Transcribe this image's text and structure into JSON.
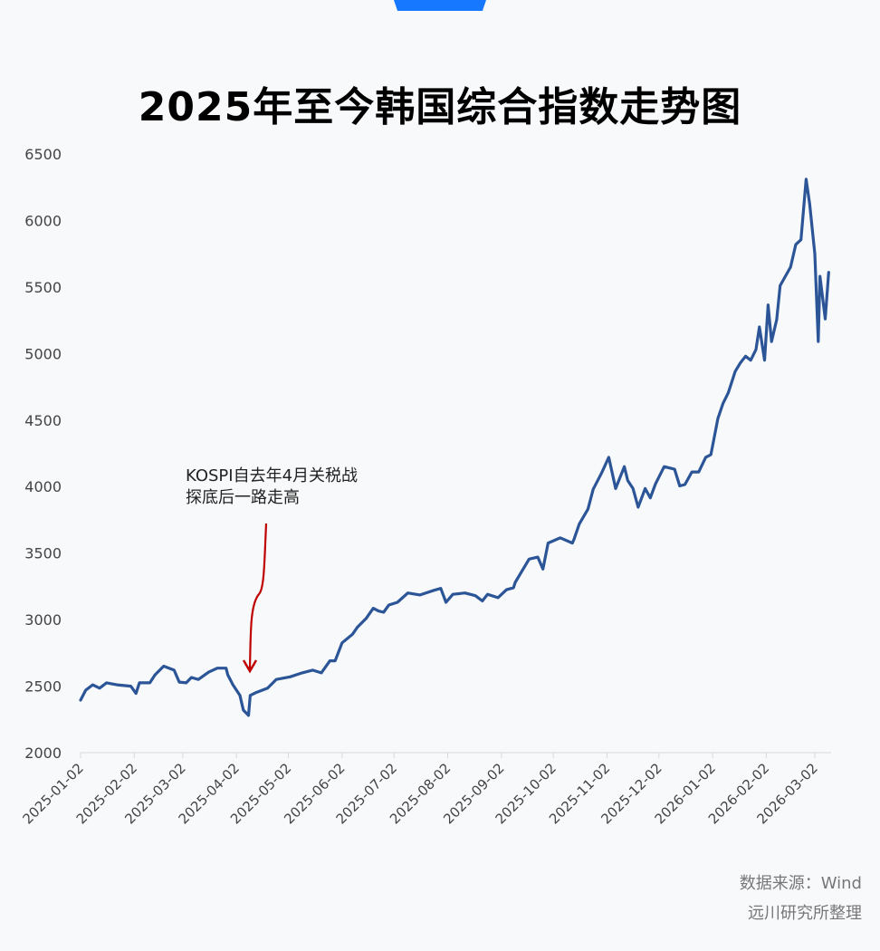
{
  "accent_color": "#1677ff",
  "chart_data": {
    "type": "line",
    "title": "2025年至今韩国综合指数走势图",
    "xlabel": "",
    "ylabel": "",
    "ylim": [
      2000,
      6500
    ],
    "yticks": [
      2000,
      2500,
      3000,
      3500,
      4000,
      4500,
      5000,
      5500,
      6000,
      6500
    ],
    "xticks": [
      "2025-01-02",
      "2025-02-02",
      "2025-03-02",
      "2025-04-02",
      "2025-05-02",
      "2025-06-02",
      "2025-07-02",
      "2025-08-02",
      "2025-09-02",
      "2025-10-02",
      "2025-11-02",
      "2025-12-02",
      "2026-01-02",
      "2026-02-02",
      "2026-03-02"
    ],
    "grid": false,
    "line_color": "#2b5597",
    "annotation": {
      "lines": [
        "KOSPI自去年4月关税战",
        "探底后一路走高"
      ],
      "arrow_color": "#c00000"
    },
    "series": [
      {
        "points": [
          [
            "2025-01-02",
            2395
          ],
          [
            "2025-01-05",
            2470
          ],
          [
            "2025-01-09",
            2510
          ],
          [
            "2025-01-13",
            2485
          ],
          [
            "2025-01-17",
            2525
          ],
          [
            "2025-01-23",
            2510
          ],
          [
            "2025-01-31",
            2500
          ],
          [
            "2025-02-03",
            2445
          ],
          [
            "2025-02-05",
            2525
          ],
          [
            "2025-02-11",
            2525
          ],
          [
            "2025-02-14",
            2585
          ],
          [
            "2025-02-19",
            2650
          ],
          [
            "2025-02-25",
            2620
          ],
          [
            "2025-02-28",
            2530
          ],
          [
            "2025-03-04",
            2525
          ],
          [
            "2025-03-07",
            2565
          ],
          [
            "2025-03-11",
            2550
          ],
          [
            "2025-03-17",
            2605
          ],
          [
            "2025-03-22",
            2635
          ],
          [
            "2025-03-27",
            2635
          ],
          [
            "2025-03-28",
            2585
          ],
          [
            "2025-03-31",
            2510
          ],
          [
            "2025-04-04",
            2430
          ],
          [
            "2025-04-06",
            2320
          ],
          [
            "2025-04-09",
            2280
          ],
          [
            "2025-04-10",
            2430
          ],
          [
            "2025-04-13",
            2450
          ],
          [
            "2025-04-20",
            2485
          ],
          [
            "2025-04-25",
            2550
          ],
          [
            "2025-05-03",
            2570
          ],
          [
            "2025-05-10",
            2600
          ],
          [
            "2025-05-16",
            2620
          ],
          [
            "2025-05-21",
            2600
          ],
          [
            "2025-05-26",
            2690
          ],
          [
            "2025-05-29",
            2690
          ],
          [
            "2025-06-02",
            2825
          ],
          [
            "2025-06-08",
            2890
          ],
          [
            "2025-06-11",
            2945
          ],
          [
            "2025-06-16",
            3010
          ],
          [
            "2025-06-20",
            3085
          ],
          [
            "2025-06-23",
            3065
          ],
          [
            "2025-06-26",
            3055
          ],
          [
            "2025-06-29",
            3110
          ],
          [
            "2025-07-04",
            3130
          ],
          [
            "2025-07-10",
            3200
          ],
          [
            "2025-07-17",
            3185
          ],
          [
            "2025-07-25",
            3220
          ],
          [
            "2025-07-29",
            3235
          ],
          [
            "2025-08-01",
            3130
          ],
          [
            "2025-08-05",
            3190
          ],
          [
            "2025-08-12",
            3200
          ],
          [
            "2025-08-18",
            3180
          ],
          [
            "2025-08-22",
            3140
          ],
          [
            "2025-08-25",
            3190
          ],
          [
            "2025-08-31",
            3165
          ],
          [
            "2025-09-05",
            3225
          ],
          [
            "2025-09-09",
            3240
          ],
          [
            "2025-09-10",
            3280
          ],
          [
            "2025-09-18",
            3455
          ],
          [
            "2025-09-23",
            3470
          ],
          [
            "2025-09-26",
            3380
          ],
          [
            "2025-09-29",
            3575
          ],
          [
            "2025-10-06",
            3615
          ],
          [
            "2025-10-13",
            3575
          ],
          [
            "2025-10-14",
            3605
          ],
          [
            "2025-10-17",
            3720
          ],
          [
            "2025-10-22",
            3830
          ],
          [
            "2025-10-25",
            3980
          ],
          [
            "2025-10-30",
            4105
          ],
          [
            "2025-11-03",
            4220
          ],
          [
            "2025-11-07",
            3985
          ],
          [
            "2025-11-12",
            4150
          ],
          [
            "2025-11-14",
            4045
          ],
          [
            "2025-11-17",
            3985
          ],
          [
            "2025-11-20",
            3845
          ],
          [
            "2025-11-24",
            3985
          ],
          [
            "2025-11-27",
            3915
          ],
          [
            "2025-11-30",
            4020
          ],
          [
            "2025-12-05",
            4150
          ],
          [
            "2025-12-11",
            4130
          ],
          [
            "2025-12-14",
            4005
          ],
          [
            "2025-12-17",
            4015
          ],
          [
            "2025-12-21",
            4110
          ],
          [
            "2025-12-25",
            4110
          ],
          [
            "2025-12-29",
            4220
          ],
          [
            "2026-01-01",
            4240
          ],
          [
            "2026-01-05",
            4510
          ],
          [
            "2026-01-08",
            4625
          ],
          [
            "2026-01-11",
            4705
          ],
          [
            "2026-01-15",
            4865
          ],
          [
            "2026-01-18",
            4930
          ],
          [
            "2026-01-21",
            4980
          ],
          [
            "2026-01-24",
            4950
          ],
          [
            "2026-01-27",
            5030
          ],
          [
            "2026-01-29",
            5200
          ],
          [
            "2026-02-01",
            4950
          ],
          [
            "2026-02-03",
            5365
          ],
          [
            "2026-02-05",
            5090
          ],
          [
            "2026-02-08",
            5255
          ],
          [
            "2026-02-10",
            5510
          ],
          [
            "2026-02-16",
            5650
          ],
          [
            "2026-02-19",
            5820
          ],
          [
            "2026-02-22",
            5855
          ],
          [
            "2026-02-25",
            6310
          ],
          [
            "2026-02-27",
            6125
          ],
          [
            "2026-03-02",
            5750
          ],
          [
            "2026-03-04",
            5090
          ],
          [
            "2026-03-05",
            5580
          ],
          [
            "2026-03-08",
            5260
          ],
          [
            "2026-03-10",
            5610
          ]
        ]
      }
    ]
  },
  "source": {
    "line1": "数据来源：Wind",
    "line2": "远川研究所整理"
  }
}
